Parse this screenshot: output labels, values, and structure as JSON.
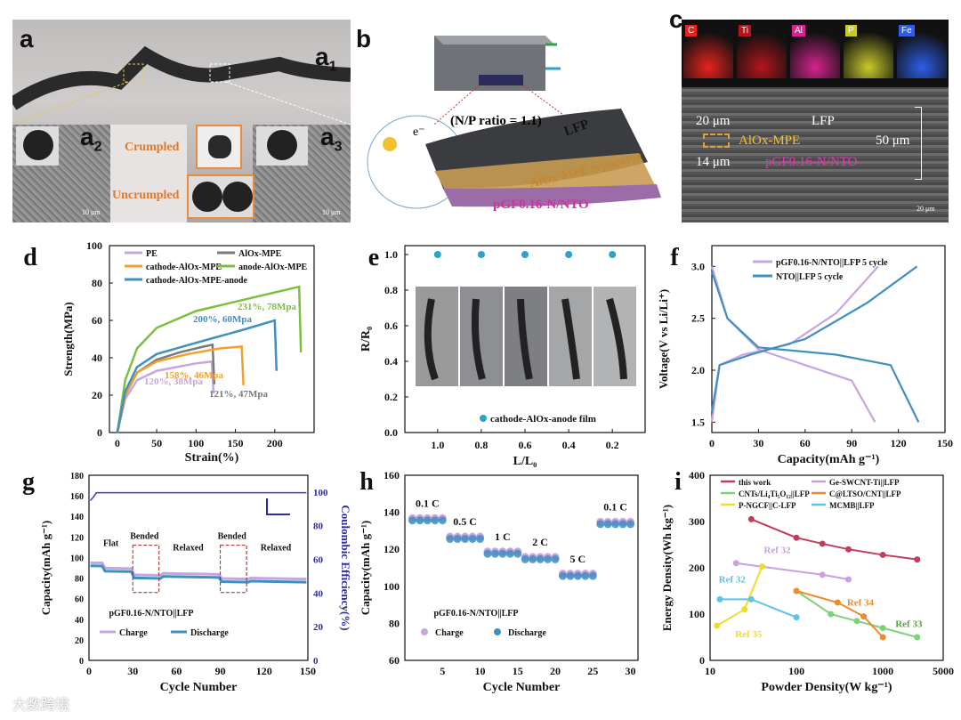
{
  "panels": {
    "a": {
      "label": "a",
      "a1": "a",
      "a1s": "1",
      "a2": "a",
      "a2s": "2",
      "a3": "a",
      "a3s": "3",
      "crumpled": "Crumpled",
      "uncrumpled": "Uncrumpled",
      "scale_left": "10 μm",
      "scale_right": "10 μm"
    },
    "b": {
      "label": "b",
      "np": "(N/P ratio = 1.1)",
      "lfp": "LFP",
      "sep": "AlOx-MPE separator",
      "sep_sub": "x",
      "anode": "pGF0.16-N/NTO",
      "electron": "e⁻"
    },
    "c": {
      "label": "c",
      "maps": [
        "C",
        "Ti",
        "Al",
        "P",
        "Fe"
      ],
      "map_colors": [
        "#e8231d",
        "#b3151b",
        "#d6238e",
        "#c9c92a",
        "#2c5ee8"
      ],
      "t1": "20 μm",
      "t2": "14 μm",
      "t3": "50 μm",
      "l1": "LFP",
      "l2": "AlOx-MPE",
      "l3": "pGF0.16-N/NTO",
      "scale": "20 μm"
    }
  },
  "chart_data": [
    {
      "id": "d",
      "type": "line",
      "label": "d",
      "xlabel": "Strain(%)",
      "ylabel": "Strength(MPa)",
      "xlim": [
        -10,
        250
      ],
      "ylim": [
        0,
        100
      ],
      "xticks": [
        "0",
        "50",
        "100",
        "150",
        "200"
      ],
      "yticks": [
        "0",
        "20",
        "40",
        "60",
        "80",
        "100"
      ],
      "legend": [
        "PE",
        "AlOx-MPE",
        "cathode-AlOx-MPE",
        "anode-AlOx-MPE",
        "cathode-AlOx-MPE-anode"
      ],
      "series": [
        {
          "name": "PE",
          "color": "#c8a4e0",
          "x": [
            0,
            10,
            25,
            50,
            75,
            100,
            120
          ],
          "y": [
            0,
            18,
            28,
            33,
            35,
            37,
            38
          ]
        },
        {
          "name": "AlOx-MPE",
          "color": "#7a7a7a",
          "x": [
            0,
            10,
            25,
            50,
            80,
            110,
            121
          ],
          "y": [
            0,
            20,
            32,
            39,
            43,
            46,
            47
          ]
        },
        {
          "name": "cathode-AlOx-MPE",
          "color": "#f2a02a",
          "x": [
            0,
            10,
            25,
            50,
            90,
            130,
            158
          ],
          "y": [
            0,
            20,
            32,
            38,
            42,
            45,
            46
          ]
        },
        {
          "name": "anode-AlOx-MPE",
          "color": "#7cbf3e",
          "x": [
            0,
            10,
            25,
            50,
            100,
            170,
            231
          ],
          "y": [
            0,
            28,
            45,
            56,
            65,
            72,
            78
          ]
        },
        {
          "name": "cathode-AlOx-MPE-anode",
          "color": "#3f8fc1",
          "x": [
            0,
            10,
            25,
            50,
            100,
            160,
            200
          ],
          "y": [
            0,
            22,
            35,
            42,
            48,
            55,
            60
          ]
        }
      ],
      "annotations": [
        "231%, 78Mpa",
        "200%, 60Mpa",
        "158%, 46Mpa",
        "120%, 38Mpa",
        "121%, 47Mpa"
      ]
    },
    {
      "id": "e",
      "type": "scatter",
      "label": "e",
      "xlabel": "L/L₀",
      "ylabel": "R/R₀",
      "xlim": [
        1.15,
        0.05
      ],
      "ylim": [
        0,
        1.05
      ],
      "xticks": [
        "1.0",
        "0.8",
        "0.6",
        "0.4",
        "0.2"
      ],
      "yticks": [
        "0.0",
        "0.2",
        "0.4",
        "0.6",
        "0.8",
        "1.0"
      ],
      "x": [
        1.0,
        0.8,
        0.6,
        0.4,
        0.2
      ],
      "y": [
        1.0,
        1.0,
        1.0,
        1.0,
        1.0
      ],
      "legend": "cathode-AlOx-anode film"
    },
    {
      "id": "f",
      "type": "line",
      "label": "f",
      "xlabel": "Capacity(mAh g⁻¹)",
      "ylabel": "Voltage(V vs Li/Li⁺)",
      "xlim": [
        0,
        150
      ],
      "ylim": [
        1.4,
        3.2
      ],
      "xticks": [
        "0",
        "30",
        "60",
        "90",
        "120",
        "150"
      ],
      "yticks": [
        "1.5",
        "2.0",
        "2.5",
        "3.0"
      ],
      "series": [
        {
          "name": "pGF0.16-N/NTO||LFP 5 cycle",
          "color": "#c8a4e0"
        },
        {
          "name": "NTO||LFP 5 cycle",
          "color": "#3f8fc1"
        }
      ]
    },
    {
      "id": "g",
      "type": "line",
      "label": "g",
      "xlabel": "Cycle Number",
      "ylabel": "Capacity(mAh g⁻¹)",
      "ylabel2": "Coulombic Efficiency(%)",
      "xlim": [
        0,
        150
      ],
      "ylim": [
        0,
        180
      ],
      "ylim2": [
        0,
        110
      ],
      "xticks": [
        "0",
        "30",
        "60",
        "90",
        "120",
        "150"
      ],
      "yticks": [
        "0",
        "20",
        "40",
        "60",
        "80",
        "100",
        "120",
        "140",
        "160",
        "180"
      ],
      "yticks2": [
        "0",
        "20",
        "40",
        "60",
        "80",
        "100"
      ],
      "notes": [
        "Flat",
        "Bended",
        "Relaxed",
        "Bended",
        "Relaxed"
      ],
      "title_inner": "pGF0.16-N/NTO||LFP",
      "series": [
        {
          "name": "Charge",
          "color": "#c8a4e0"
        },
        {
          "name": "Discharge",
          "color": "#3f8fc1"
        }
      ]
    },
    {
      "id": "h",
      "type": "scatter",
      "label": "h",
      "xlabel": "Cycle  Number",
      "ylabel": "Capacity(mAh g⁻¹)",
      "xlim": [
        0,
        31
      ],
      "ylim": [
        60,
        160
      ],
      "xticks": [
        "5",
        "10",
        "15",
        "20",
        "25",
        "30"
      ],
      "yticks": [
        "60",
        "80",
        "100",
        "120",
        "140",
        "160"
      ],
      "rates": [
        "0.1 C",
        "0.5 C",
        "1 C",
        "2 C",
        "5 C",
        "0.1 C"
      ],
      "rate_values": [
        136,
        126,
        118,
        115,
        106,
        134
      ],
      "title_inner": "pGF0.16-N/NTO||LFP",
      "series": [
        {
          "name": "Charge",
          "color": "#c8a4e0"
        },
        {
          "name": "Discharge",
          "color": "#3f8fc1"
        }
      ]
    },
    {
      "id": "i",
      "type": "scatter",
      "label": "i",
      "xlabel": "Powder Density(W kg⁻¹)",
      "ylabel": "Energy Density(Wh kg⁻¹)",
      "xscale": "log",
      "xlim": [
        10,
        5000
      ],
      "ylim": [
        0,
        400
      ],
      "xticks": [
        "10",
        "100",
        "1000",
        "5000"
      ],
      "yticks": [
        "0",
        "100",
        "200",
        "300",
        "400"
      ],
      "series": [
        {
          "name": "this work",
          "color": "#c23d5c",
          "x": [
            30,
            100,
            200,
            400,
            1000,
            2500
          ],
          "y": [
            305,
            265,
            252,
            240,
            228,
            218
          ]
        },
        {
          "name": "Ge-SWCNT-Ti||LFP",
          "color": "#c7a1dd",
          "x": [
            20,
            200,
            400
          ],
          "y": [
            210,
            185,
            175
          ]
        },
        {
          "name": "CNTs/Li₄Ti₅O₁₂||LFP",
          "color": "#7ed07a",
          "x": [
            100,
            250,
            500,
            1000,
            2500
          ],
          "y": [
            150,
            100,
            85,
            70,
            50
          ]
        },
        {
          "name": "C@LTSO/CNT||LFP",
          "color": "#ec8c2e",
          "x": [
            100,
            300,
            600,
            1000
          ],
          "y": [
            150,
            125,
            95,
            50
          ]
        },
        {
          "name": "P-NGCF||C-LFP",
          "color": "#f2dc2a",
          "x": [
            12,
            25,
            40
          ],
          "y": [
            75,
            110,
            203
          ]
        },
        {
          "name": "MCMB||LFP",
          "color": "#5dc3e8",
          "x": [
            13,
            30,
            100
          ],
          "y": [
            132,
            132,
            93
          ]
        }
      ],
      "refs": [
        "Ref 32",
        "Ref 32",
        "Ref 34",
        "Ref 33",
        "Ref 35"
      ]
    }
  ],
  "watermark": "大数跨境"
}
